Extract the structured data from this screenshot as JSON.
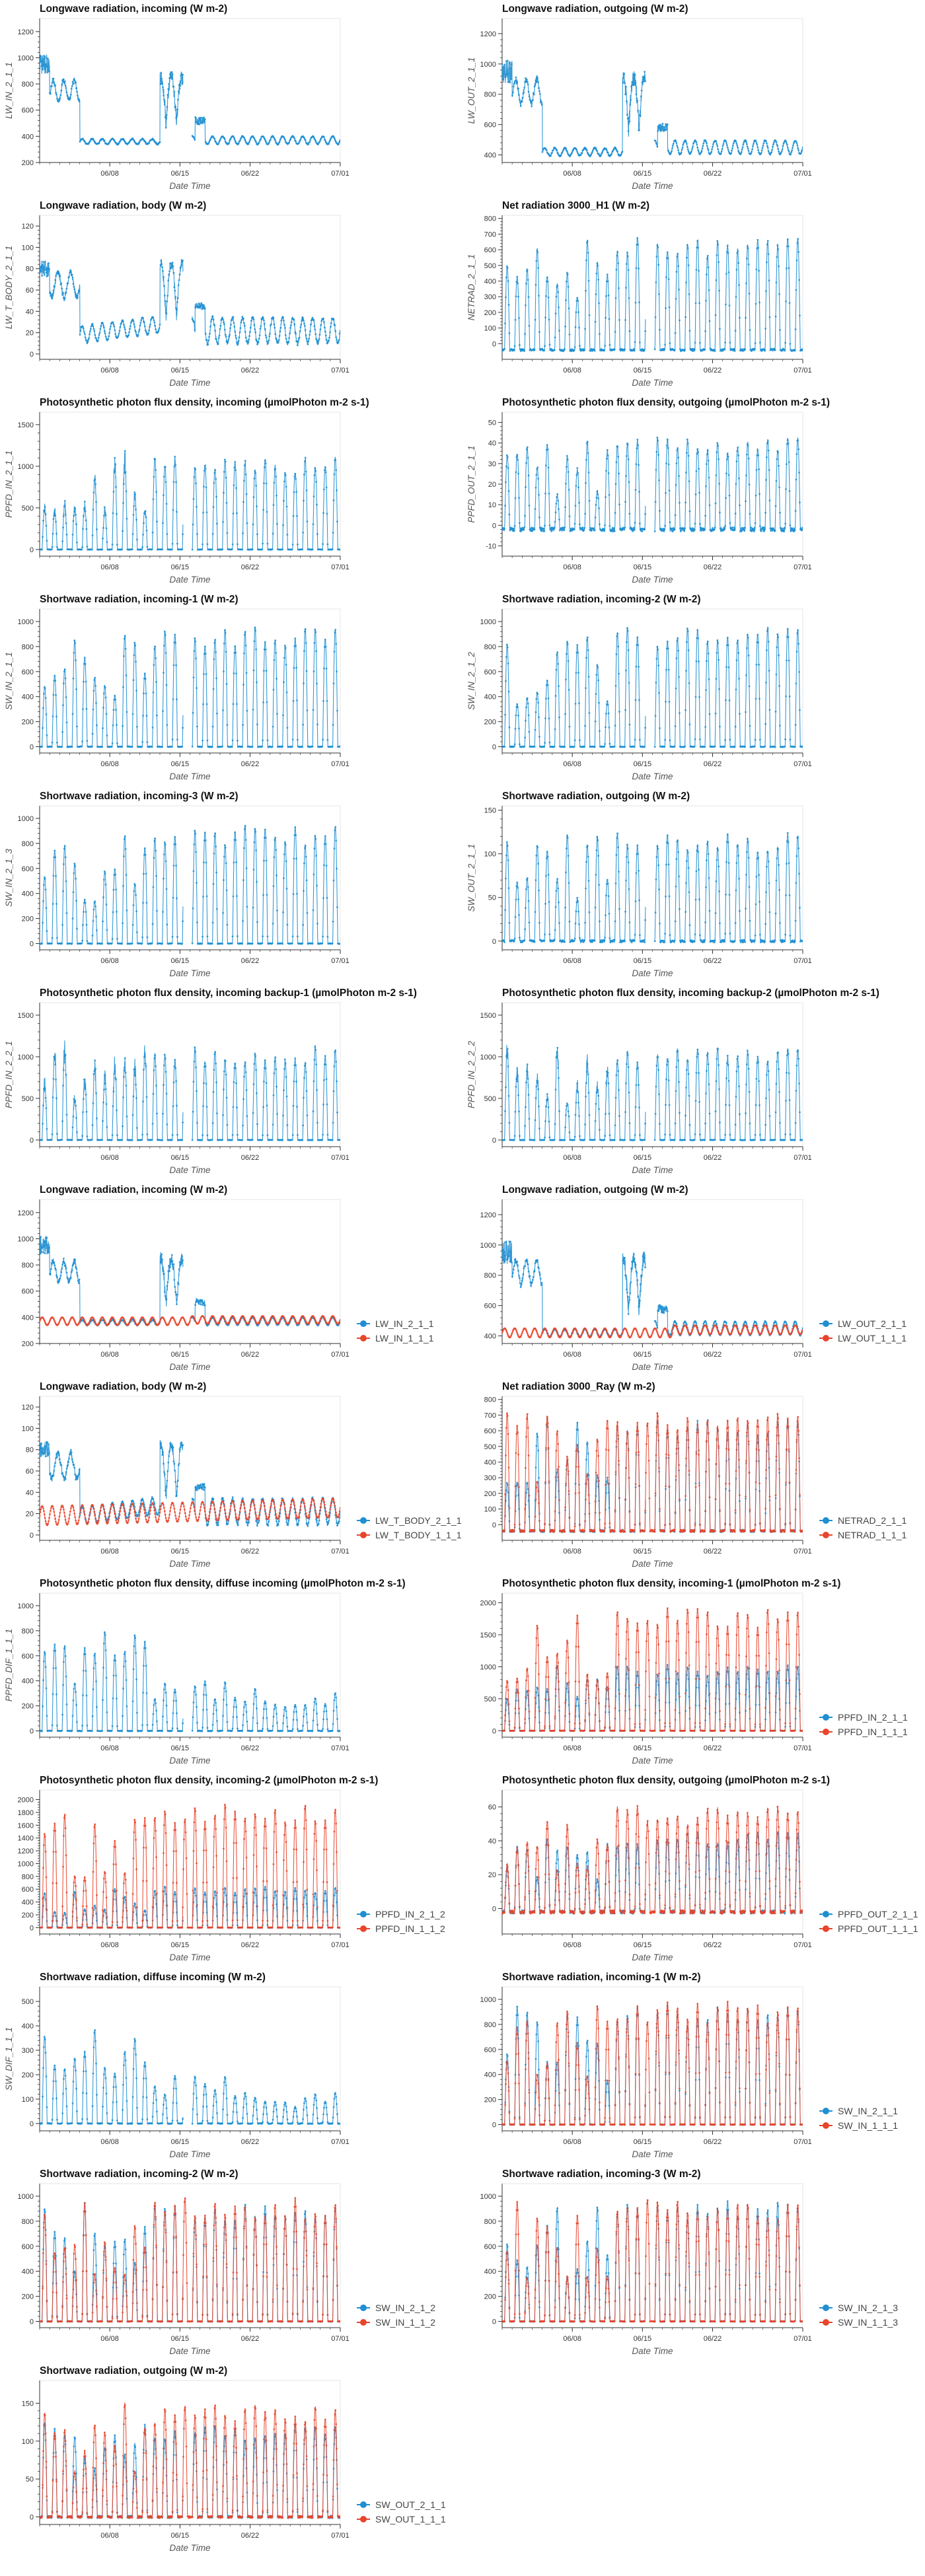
{
  "colors": {
    "series_a": "#1f8fd1",
    "series_b": "#e8452c",
    "axis": "#333333",
    "grid": "#e6e6e6"
  },
  "x_axis": {
    "ticks": [
      "06/08",
      "06/15",
      "06/22",
      "07/01"
    ],
    "tick_days": [
      8,
      15,
      22,
      31
    ],
    "range_days": [
      1,
      31
    ]
  },
  "chart_data": [
    {
      "type": "line",
      "title": "Longwave radiation, incoming (W m-2)",
      "xlabel": "Date Time",
      "ylabel": "LW_IN_2_1_1",
      "ylim": [
        200,
        1300
      ],
      "yticks": [
        200,
        400,
        600,
        800,
        1000,
        1200
      ],
      "model": "lwin",
      "series": [
        {
          "name": "",
          "color": "series_a"
        }
      ],
      "legend": "none"
    },
    {
      "type": "line",
      "title": "Longwave radiation, outgoing (W m-2)",
      "xlabel": "Date Time",
      "ylabel": "LW_OUT_2_1_1",
      "ylim": [
        350,
        1300
      ],
      "yticks": [
        400,
        600,
        800,
        1000,
        1200
      ],
      "model": "lwout",
      "series": [
        {
          "name": "",
          "color": "series_a"
        }
      ],
      "legend": "none"
    },
    {
      "type": "line",
      "title": "Longwave radiation, body (W m-2)",
      "xlabel": "Date Time",
      "ylabel": "LW_T_BODY_2_1_1",
      "ylim": [
        -5,
        130
      ],
      "yticks": [
        0,
        20,
        40,
        60,
        80,
        100,
        120
      ],
      "model": "body",
      "series": [
        {
          "name": "",
          "color": "series_a"
        }
      ],
      "legend": "none"
    },
    {
      "type": "line",
      "title": "Net radiation 3000_H1 (W m-2)",
      "xlabel": "Date Time",
      "ylabel": "NETRAD_2_1_1",
      "ylim": [
        -100,
        820
      ],
      "yticks": [
        0,
        100,
        200,
        300,
        400,
        500,
        600,
        700,
        800
      ],
      "model": "netrad",
      "series": [
        {
          "name": "",
          "color": "series_a"
        }
      ],
      "legend": "none"
    },
    {
      "type": "line",
      "title": "Photosynthetic photon flux density, incoming (µmolPhoton m-2 s-1)",
      "xlabel": "Date Time",
      "ylabel": "PPFD_IN_2_1_1",
      "ylim": [
        -80,
        1650
      ],
      "yticks": [
        0,
        500,
        1000,
        1500
      ],
      "model": "ppfd",
      "series": [
        {
          "name": "",
          "color": "series_a"
        }
      ],
      "legend": "none"
    },
    {
      "type": "line",
      "title": "Photosynthetic photon flux density, outgoing (µmolPhoton m-2 s-1)",
      "xlabel": "Date Time",
      "ylabel": "PPFD_OUT_2_1_1",
      "ylim": [
        -15,
        55
      ],
      "yticks": [
        -10,
        0,
        10,
        20,
        30,
        40,
        50
      ],
      "model": "ppfdout",
      "series": [
        {
          "name": "",
          "color": "series_a"
        }
      ],
      "legend": "none"
    },
    {
      "type": "line",
      "title": "Shortwave radiation, incoming-1 (W m-2)",
      "xlabel": "Date Time",
      "ylabel": "SW_IN_2_1_1",
      "ylim": [
        -50,
        1100
      ],
      "yticks": [
        0,
        200,
        400,
        600,
        800,
        1000
      ],
      "model": "swin",
      "series": [
        {
          "name": "",
          "color": "series_a"
        }
      ],
      "legend": "none"
    },
    {
      "type": "line",
      "title": "Shortwave radiation, incoming-2 (W m-2)",
      "xlabel": "Date Time",
      "ylabel": "SW_IN_2_1_2",
      "ylim": [
        -50,
        1100
      ],
      "yticks": [
        0,
        200,
        400,
        600,
        800,
        1000
      ],
      "model": "swin",
      "series": [
        {
          "name": "",
          "color": "series_a"
        }
      ],
      "legend": "none"
    },
    {
      "type": "line",
      "title": "Shortwave radiation, incoming-3 (W m-2)",
      "xlabel": "Date Time",
      "ylabel": "SW_IN_2_1_3",
      "ylim": [
        -50,
        1100
      ],
      "yticks": [
        0,
        200,
        400,
        600,
        800,
        1000
      ],
      "model": "swin",
      "series": [
        {
          "name": "",
          "color": "series_a"
        }
      ],
      "legend": "none"
    },
    {
      "type": "line",
      "title": "Shortwave radiation, outgoing (W m-2)",
      "xlabel": "Date Time",
      "ylabel": "SW_OUT_2_1_1",
      "ylim": [
        -10,
        155
      ],
      "yticks": [
        0,
        50,
        100,
        150
      ],
      "model": "swout",
      "series": [
        {
          "name": "",
          "color": "series_a"
        }
      ],
      "legend": "none"
    },
    {
      "type": "line",
      "title": "Photosynthetic photon flux density, incoming backup-1 (µmolPhoton m-2 s-1)",
      "xlabel": "Date Time",
      "ylabel": "PPFD_IN_2_2_1",
      "ylim": [
        -80,
        1650
      ],
      "yticks": [
        0,
        500,
        1000,
        1500
      ],
      "model": "ppfd",
      "series": [
        {
          "name": "",
          "color": "series_a"
        }
      ],
      "legend": "none"
    },
    {
      "type": "line",
      "title": "Photosynthetic photon flux density, incoming backup-2 (µmolPhoton m-2 s-1)",
      "xlabel": "Date Time",
      "ylabel": "PPFD_IN_2_2_2",
      "ylim": [
        -80,
        1650
      ],
      "yticks": [
        0,
        500,
        1000,
        1500
      ],
      "model": "ppfd",
      "series": [
        {
          "name": "",
          "color": "series_a"
        }
      ],
      "legend": "none"
    },
    {
      "type": "line",
      "title": "Longwave radiation, incoming (W m-2)",
      "xlabel": "Date Time",
      "ylabel": "",
      "ylim": [
        200,
        1300
      ],
      "yticks": [
        200,
        400,
        600,
        800,
        1000,
        1200
      ],
      "model": "lwin",
      "series": [
        {
          "name": "LW_IN_2_1_1",
          "color": "series_a"
        },
        {
          "name": "LW_IN_1_1_1",
          "color": "series_b",
          "variant": "smooth"
        }
      ],
      "legend": "right"
    },
    {
      "type": "line",
      "title": "Longwave radiation, outgoing (W m-2)",
      "xlabel": "Date Time",
      "ylabel": "",
      "ylim": [
        350,
        1300
      ],
      "yticks": [
        400,
        600,
        800,
        1000,
        1200
      ],
      "model": "lwout",
      "series": [
        {
          "name": "LW_OUT_2_1_1",
          "color": "series_a"
        },
        {
          "name": "LW_OUT_1_1_1",
          "color": "series_b",
          "variant": "smooth"
        }
      ],
      "legend": "right"
    },
    {
      "type": "line",
      "title": "Longwave radiation, body (W m-2)",
      "xlabel": "Date Time",
      "ylabel": "",
      "ylim": [
        -5,
        130
      ],
      "yticks": [
        0,
        20,
        40,
        60,
        80,
        100,
        120
      ],
      "model": "body",
      "series": [
        {
          "name": "LW_T_BODY_2_1_1",
          "color": "series_a"
        },
        {
          "name": "LW_T_BODY_1_1_1",
          "color": "series_b",
          "variant": "smooth"
        }
      ],
      "legend": "right"
    },
    {
      "type": "line",
      "title": "Net radiation 3000_Ray (W m-2)",
      "xlabel": "Date Time",
      "ylabel": "",
      "ylim": [
        -100,
        820
      ],
      "yticks": [
        0,
        100,
        200,
        300,
        400,
        500,
        600,
        700,
        800
      ],
      "model": "netrad",
      "series": [
        {
          "name": "NETRAD_2_1_1",
          "color": "series_a"
        },
        {
          "name": "NETRAD_1_1_1",
          "color": "series_b",
          "variant": "full"
        }
      ],
      "legend": "right"
    },
    {
      "type": "line",
      "title": "Photosynthetic photon flux density, diffuse incoming (µmolPhoton m-2 s-1)",
      "xlabel": "Date Time",
      "ylabel": "PPFD_DIF_1_1_1",
      "ylim": [
        -50,
        1100
      ],
      "yticks": [
        0,
        200,
        400,
        600,
        800,
        1000
      ],
      "model": "dif",
      "series": [
        {
          "name": "",
          "color": "series_a"
        }
      ],
      "legend": "none"
    },
    {
      "type": "line",
      "title": "Photosynthetic photon flux density, incoming-1 (µmolPhoton m-2 s-1)",
      "xlabel": "Date Time",
      "ylabel": "",
      "ylim": [
        -100,
        2150
      ],
      "yticks": [
        0,
        500,
        1000,
        1500,
        2000
      ],
      "model": "ppfdhi",
      "series": [
        {
          "name": "PPFD_IN_2_1_1",
          "color": "series_a",
          "variant": "scaled"
        },
        {
          "name": "PPFD_IN_1_1_1",
          "color": "series_b",
          "variant": "full"
        }
      ],
      "legend": "right"
    },
    {
      "type": "line",
      "title": "Photosynthetic photon flux density, incoming-2 (µmolPhoton m-2 s-1)",
      "xlabel": "Date Time",
      "ylabel": "",
      "ylim": [
        -100,
        2150
      ],
      "yticks": [
        0,
        200,
        400,
        600,
        800,
        1000,
        1200,
        1400,
        1600,
        1800,
        2000
      ],
      "model": "ppfdhi",
      "series": [
        {
          "name": "PPFD_IN_2_1_2",
          "color": "series_a",
          "variant": "low"
        },
        {
          "name": "PPFD_IN_1_1_2",
          "color": "series_b",
          "variant": "full"
        }
      ],
      "legend": "right"
    },
    {
      "type": "line",
      "title": "Photosynthetic photon flux density, outgoing (µmolPhoton m-2 s-1)",
      "xlabel": "Date Time",
      "ylabel": "",
      "ylim": [
        -15,
        70
      ],
      "yticks": [
        0,
        20,
        40,
        60
      ],
      "model": "ppfdout2",
      "series": [
        {
          "name": "PPFD_OUT_2_1_1",
          "color": "series_a"
        },
        {
          "name": "PPFD_OUT_1_1_1",
          "color": "series_b",
          "variant": "full"
        }
      ],
      "legend": "right"
    },
    {
      "type": "line",
      "title": "Shortwave radiation, diffuse incoming (W m-2)",
      "xlabel": "Date Time",
      "ylabel": "SW_DIF_1_1_1",
      "ylim": [
        -30,
        560
      ],
      "yticks": [
        0,
        100,
        200,
        300,
        400,
        500
      ],
      "model": "swdif",
      "series": [
        {
          "name": "",
          "color": "series_a"
        }
      ],
      "legend": "none"
    },
    {
      "type": "line",
      "title": "Shortwave radiation, incoming-1 (W m-2)",
      "xlabel": "Date Time",
      "ylabel": "",
      "ylim": [
        -50,
        1100
      ],
      "yticks": [
        0,
        200,
        400,
        600,
        800,
        1000
      ],
      "model": "swin",
      "series": [
        {
          "name": "SW_IN_2_1_1",
          "color": "series_a"
        },
        {
          "name": "SW_IN_1_1_1",
          "color": "series_b",
          "variant": "full"
        }
      ],
      "legend": "right"
    },
    {
      "type": "line",
      "title": "Shortwave radiation, incoming-2 (W m-2)",
      "xlabel": "Date Time",
      "ylabel": "",
      "ylim": [
        -50,
        1100
      ],
      "yticks": [
        0,
        200,
        400,
        600,
        800,
        1000
      ],
      "model": "swin",
      "series": [
        {
          "name": "SW_IN_2_1_2",
          "color": "series_a"
        },
        {
          "name": "SW_IN_1_1_2",
          "color": "series_b",
          "variant": "full"
        }
      ],
      "legend": "right"
    },
    {
      "type": "line",
      "title": "Shortwave radiation, incoming-3 (W m-2)",
      "xlabel": "Date Time",
      "ylabel": "",
      "ylim": [
        -50,
        1100
      ],
      "yticks": [
        0,
        200,
        400,
        600,
        800,
        1000
      ],
      "model": "swin",
      "series": [
        {
          "name": "SW_IN_2_1_3",
          "color": "series_a"
        },
        {
          "name": "SW_IN_1_1_3",
          "color": "series_b",
          "variant": "full"
        }
      ],
      "legend": "right"
    },
    {
      "type": "line",
      "title": "Shortwave radiation, outgoing (W m-2)",
      "xlabel": "Date Time",
      "ylabel": "",
      "ylim": [
        -10,
        180
      ],
      "yticks": [
        0,
        50,
        100,
        150
      ],
      "model": "swout",
      "series": [
        {
          "name": "SW_OUT_2_1_1",
          "color": "series_a"
        },
        {
          "name": "SW_OUT_1_1_1",
          "color": "series_b",
          "variant": "full"
        }
      ],
      "legend": "right"
    }
  ]
}
